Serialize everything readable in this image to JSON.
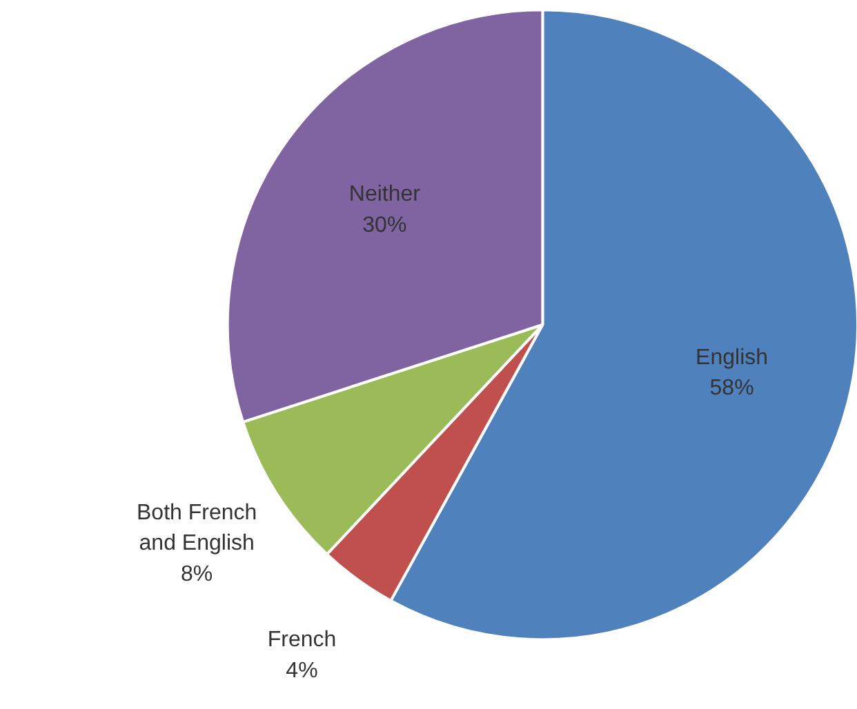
{
  "chart_data": {
    "type": "pie",
    "categories": [
      "English",
      "French",
      "Both French and English",
      "Neither"
    ],
    "values": [
      58,
      4,
      8,
      30
    ],
    "value_labels": [
      "58%",
      "4%",
      "8%",
      "30%"
    ],
    "colors": [
      "#4f81bd",
      "#c0504d",
      "#9bbb59",
      "#8064a2"
    ],
    "legend": false
  }
}
